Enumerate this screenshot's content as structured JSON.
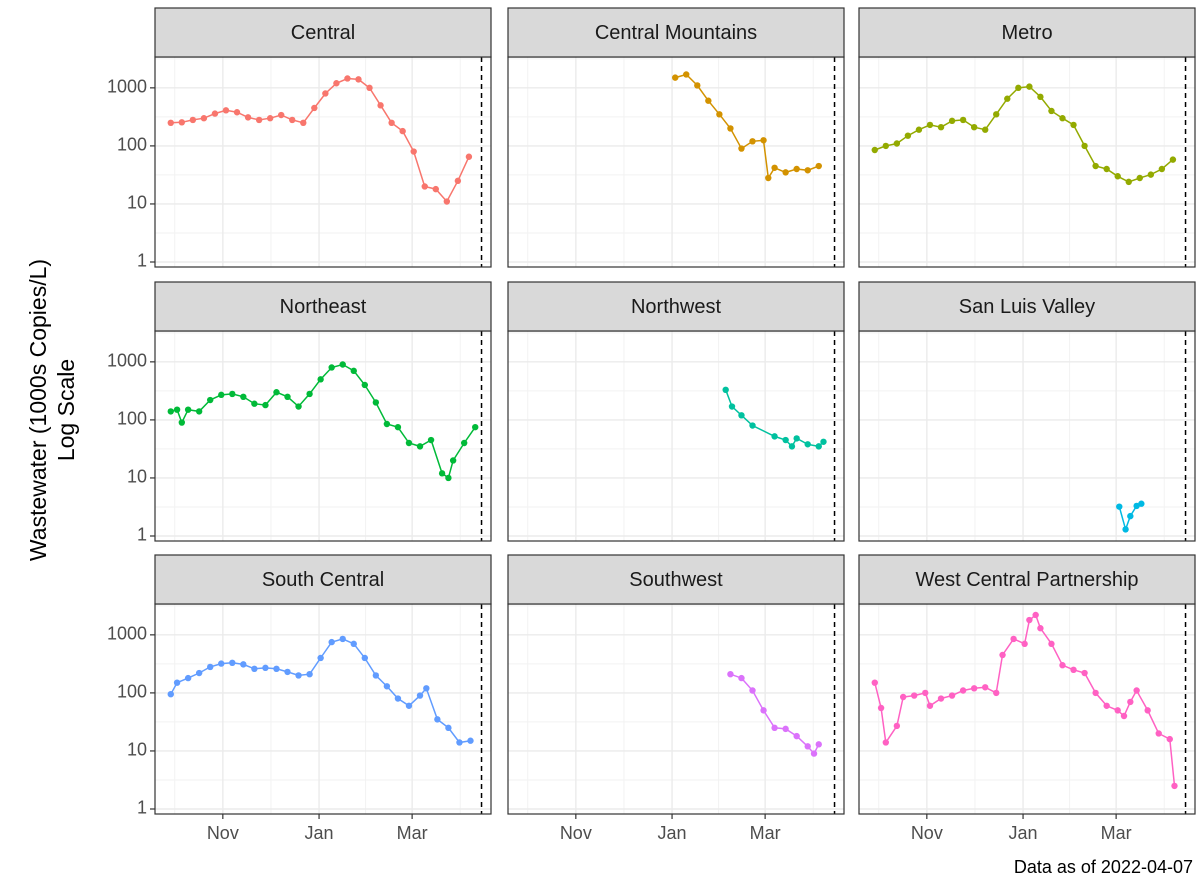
{
  "chart_data": {
    "type": "line",
    "log_y": true,
    "grid": true,
    "ylabel": [
      "Wastewater (1000s Copies/L)",
      "Log Scale"
    ],
    "caption": "Data as of 2022-04-07",
    "ylim": [
      0.82,
      3400
    ],
    "yticks": [
      1,
      10,
      100,
      1000
    ],
    "xlim": [
      "2021-09-19",
      "2022-04-20"
    ],
    "xticks": [
      {
        "value": "2021-11-01",
        "label": "Nov"
      },
      {
        "value": "2022-01-01",
        "label": "Jan"
      },
      {
        "value": "2022-03-01",
        "label": "Mar"
      }
    ],
    "vline": "2022-04-14",
    "facets": [
      {
        "name": "Central",
        "color": "#F8766D",
        "x": [
          "2021-09-29",
          "2021-10-06",
          "2021-10-13",
          "2021-10-20",
          "2021-10-27",
          "2021-11-03",
          "2021-11-10",
          "2021-11-17",
          "2021-11-24",
          "2021-12-01",
          "2021-12-08",
          "2021-12-15",
          "2021-12-22",
          "2021-12-29",
          "2022-01-05",
          "2022-01-12",
          "2022-01-19",
          "2022-01-26",
          "2022-02-02",
          "2022-02-09",
          "2022-02-16",
          "2022-02-23",
          "2022-03-02",
          "2022-03-09",
          "2022-03-16",
          "2022-03-23",
          "2022-03-30",
          "2022-04-06"
        ],
        "values": [
          250,
          255,
          280,
          300,
          360,
          410,
          380,
          310,
          280,
          300,
          340,
          280,
          250,
          450,
          800,
          1200,
          1450,
          1400,
          1000,
          500,
          250,
          180,
          80,
          20,
          18,
          11,
          25,
          65
        ]
      },
      {
        "name": "Central Mountains",
        "color": "#D39200",
        "x": [
          "2022-01-03",
          "2022-01-10",
          "2022-01-17",
          "2022-01-24",
          "2022-01-31",
          "2022-02-07",
          "2022-02-14",
          "2022-02-21",
          "2022-02-28",
          "2022-03-03",
          "2022-03-07",
          "2022-03-14",
          "2022-03-21",
          "2022-03-28",
          "2022-04-04"
        ],
        "values": [
          1500,
          1700,
          1100,
          600,
          350,
          200,
          90,
          120,
          125,
          28,
          42,
          35,
          40,
          38,
          45
        ]
      },
      {
        "name": "Metro",
        "color": "#93AA00",
        "x": [
          "2021-09-29",
          "2021-10-06",
          "2021-10-13",
          "2021-10-20",
          "2021-10-27",
          "2021-11-03",
          "2021-11-10",
          "2021-11-17",
          "2021-11-24",
          "2021-12-01",
          "2021-12-08",
          "2021-12-15",
          "2021-12-22",
          "2021-12-29",
          "2022-01-05",
          "2022-01-12",
          "2022-01-19",
          "2022-01-26",
          "2022-02-02",
          "2022-02-09",
          "2022-02-16",
          "2022-02-23",
          "2022-03-02",
          "2022-03-09",
          "2022-03-16",
          "2022-03-23",
          "2022-03-30",
          "2022-04-06"
        ],
        "values": [
          85,
          100,
          110,
          150,
          190,
          230,
          210,
          270,
          280,
          210,
          190,
          350,
          650,
          1000,
          1050,
          700,
          400,
          300,
          230,
          100,
          45,
          40,
          30,
          24,
          28,
          32,
          40,
          58
        ]
      },
      {
        "name": "Northeast",
        "color": "#00BA38",
        "x": [
          "2021-09-29",
          "2021-10-03",
          "2021-10-06",
          "2021-10-10",
          "2021-10-17",
          "2021-10-24",
          "2021-10-31",
          "2021-11-07",
          "2021-11-14",
          "2021-11-21",
          "2021-11-28",
          "2021-12-05",
          "2021-12-12",
          "2021-12-19",
          "2021-12-26",
          "2022-01-02",
          "2022-01-09",
          "2022-01-16",
          "2022-01-23",
          "2022-01-30",
          "2022-02-06",
          "2022-02-13",
          "2022-02-20",
          "2022-02-27",
          "2022-03-06",
          "2022-03-13",
          "2022-03-20",
          "2022-03-24",
          "2022-03-27",
          "2022-04-03",
          "2022-04-10"
        ],
        "values": [
          140,
          150,
          90,
          150,
          140,
          220,
          270,
          280,
          250,
          190,
          180,
          300,
          250,
          170,
          280,
          500,
          800,
          900,
          700,
          400,
          200,
          85,
          75,
          40,
          35,
          45,
          12,
          10,
          20,
          40,
          75
        ]
      },
      {
        "name": "Northwest",
        "color": "#00C19F",
        "x": [
          "2022-02-04",
          "2022-02-08",
          "2022-02-14",
          "2022-02-21",
          "2022-03-07",
          "2022-03-14",
          "2022-03-18",
          "2022-03-21",
          "2022-03-28",
          "2022-04-04",
          "2022-04-07"
        ],
        "values": [
          330,
          170,
          120,
          80,
          52,
          45,
          35,
          48,
          38,
          35,
          42
        ]
      },
      {
        "name": "San Luis Valley",
        "color": "#00B9E3",
        "x": [
          "2022-03-03",
          "2022-03-07",
          "2022-03-10",
          "2022-03-14",
          "2022-03-17"
        ],
        "values": [
          3.2,
          1.3,
          2.2,
          3.3,
          3.6
        ]
      },
      {
        "name": "South Central",
        "color": "#619CFF",
        "x": [
          "2021-09-29",
          "2021-10-03",
          "2021-10-10",
          "2021-10-17",
          "2021-10-24",
          "2021-10-31",
          "2021-11-07",
          "2021-11-14",
          "2021-11-21",
          "2021-11-28",
          "2021-12-05",
          "2021-12-12",
          "2021-12-19",
          "2021-12-26",
          "2022-01-02",
          "2022-01-09",
          "2022-01-16",
          "2022-01-23",
          "2022-01-30",
          "2022-02-06",
          "2022-02-13",
          "2022-02-20",
          "2022-02-27",
          "2022-03-06",
          "2022-03-10",
          "2022-03-17",
          "2022-03-24",
          "2022-03-31",
          "2022-04-07"
        ],
        "values": [
          95,
          150,
          180,
          220,
          280,
          320,
          330,
          310,
          260,
          270,
          260,
          230,
          200,
          210,
          400,
          750,
          850,
          700,
          400,
          200,
          130,
          80,
          60,
          90,
          120,
          35,
          25,
          14,
          15
        ]
      },
      {
        "name": "Southwest",
        "color": "#DB72FB",
        "x": [
          "2022-02-07",
          "2022-02-14",
          "2022-02-21",
          "2022-02-28",
          "2022-03-07",
          "2022-03-14",
          "2022-03-21",
          "2022-03-28",
          "2022-04-01",
          "2022-04-04"
        ],
        "values": [
          210,
          180,
          110,
          50,
          25,
          24,
          18,
          12,
          9,
          13
        ]
      },
      {
        "name": "West Central Partnership",
        "color": "#FF61C3",
        "x": [
          "2021-09-29",
          "2021-10-03",
          "2021-10-06",
          "2021-10-13",
          "2021-10-17",
          "2021-10-24",
          "2021-10-31",
          "2021-11-03",
          "2021-11-10",
          "2021-11-17",
          "2021-11-24",
          "2021-12-01",
          "2021-12-08",
          "2021-12-15",
          "2021-12-19",
          "2021-12-26",
          "2022-01-02",
          "2022-01-05",
          "2022-01-09",
          "2022-01-12",
          "2022-01-19",
          "2022-01-26",
          "2022-02-02",
          "2022-02-09",
          "2022-02-16",
          "2022-02-23",
          "2022-03-02",
          "2022-03-06",
          "2022-03-10",
          "2022-03-14",
          "2022-03-21",
          "2022-03-28",
          "2022-04-04",
          "2022-04-07"
        ],
        "values": [
          150,
          55,
          14,
          27,
          85,
          90,
          100,
          60,
          80,
          90,
          110,
          120,
          125,
          100,
          450,
          850,
          700,
          1800,
          2200,
          1300,
          700,
          300,
          250,
          220,
          100,
          60,
          50,
          40,
          70,
          110,
          50,
          20,
          16,
          2.5
        ]
      }
    ]
  }
}
